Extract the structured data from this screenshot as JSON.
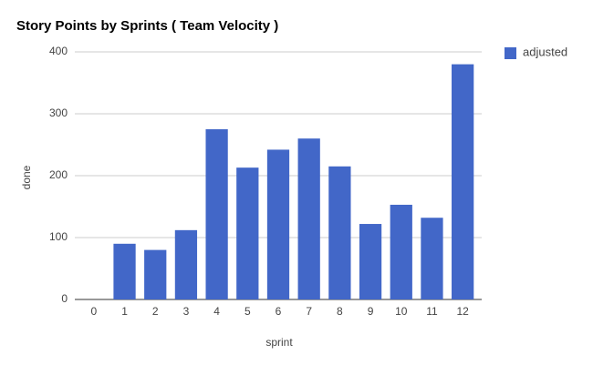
{
  "chart_data": {
    "type": "bar",
    "title": "Story Points by Sprints ( Team Velocity )",
    "x_label": "sprint",
    "y_label": "done",
    "categories": [
      "0",
      "1",
      "2",
      "3",
      "4",
      "5",
      "6",
      "7",
      "8",
      "9",
      "10",
      "11",
      "12"
    ],
    "series": [
      {
        "name": "adjusted",
        "color": "#4267c8",
        "values": [
          0,
          90,
          80,
          112,
          275,
          213,
          242,
          260,
          215,
          122,
          153,
          132,
          380
        ]
      }
    ],
    "ylim": [
      0,
      400
    ],
    "yticks": [
      0,
      100,
      200,
      300,
      400
    ],
    "grid": true,
    "legend": "right"
  }
}
